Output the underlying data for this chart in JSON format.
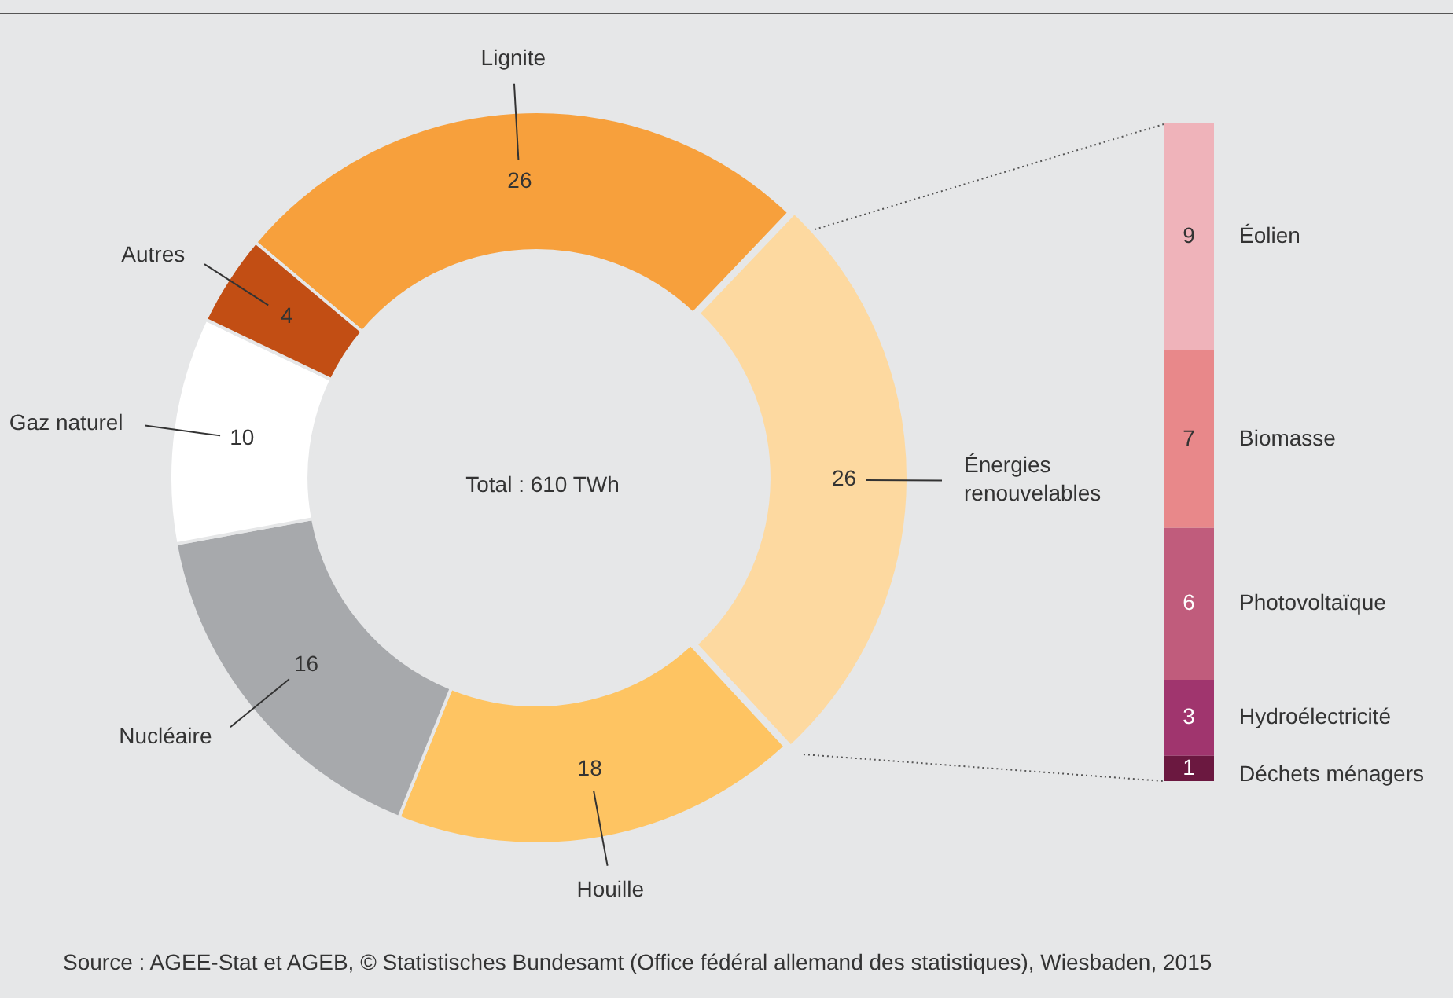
{
  "chart_data": [
    {
      "type": "donut",
      "categories": [
        "Lignite",
        "Énergies renouvelables",
        "Houille",
        "Nucléaire",
        "Gaz naturel",
        "Autres"
      ],
      "values": [
        26,
        26,
        18,
        16,
        10,
        4
      ],
      "colors": [
        "#f7a03c",
        "#fdd9a0",
        "#fec462",
        "#a7a9ac",
        "#ffffff",
        "#c24e14"
      ],
      "data_labels": true,
      "legend": false,
      "annotations": [
        "Total : 610 TWh",
        "Source : AGEE-Stat et AGEB, © Statistisches Bundesamt (Office fédéral allemand des statistiques), Wiesbaden, 2015"
      ]
    },
    {
      "type": "bar",
      "stacked": true,
      "categories": [
        null
      ],
      "data_labels": true,
      "legend": false,
      "tick_labels": false,
      "series": [
        {
          "name": "Déchets ménagers",
          "color": "#6b1840",
          "values": [
            1
          ]
        },
        {
          "name": "Hydroélectricité",
          "color": "#a0356e",
          "values": [
            3
          ]
        },
        {
          "name": "Photovoltaïque",
          "color": "#c05c7c",
          "values": [
            6
          ]
        },
        {
          "name": "Biomasse",
          "color": "#e8888a",
          "values": [
            7
          ]
        },
        {
          "name": "Éolien",
          "color": "#efb3ba",
          "values": [
            9
          ]
        }
      ]
    }
  ]
}
